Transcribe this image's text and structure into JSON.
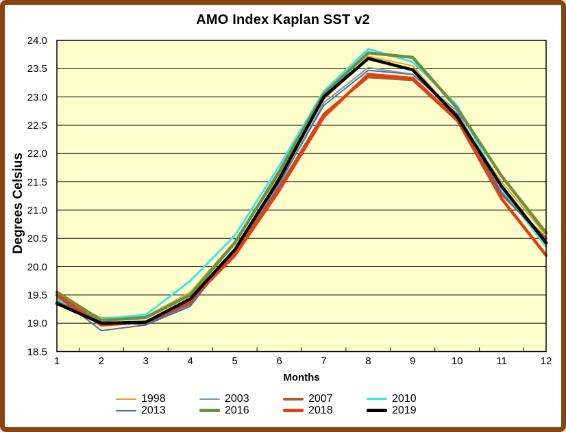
{
  "chart_data": {
    "type": "line",
    "title": "AMO Index Kaplan SST v2",
    "xlabel": "Months",
    "ylabel": "Degrees Celsius",
    "x": [
      1,
      2,
      3,
      4,
      5,
      6,
      7,
      8,
      9,
      10,
      11,
      12
    ],
    "ylim": [
      18.5,
      24.0
    ],
    "ytick_step": 0.5,
    "grid": true,
    "legend_position": "bottom",
    "legend_columns": 4,
    "plot_bg_color": "#FFFFCC",
    "frame_border_color": "#8B4212",
    "axis_color": "#000000",
    "series": [
      {
        "name": "1998",
        "color": "#E2A41C",
        "width": 2,
        "values": [
          19.45,
          19.1,
          19.12,
          19.55,
          20.45,
          21.62,
          22.95,
          23.72,
          23.55,
          22.65,
          21.5,
          20.55
        ]
      },
      {
        "name": "2003",
        "color": "#7495C7",
        "width": 2,
        "values": [
          19.45,
          19.03,
          18.97,
          19.32,
          20.28,
          21.45,
          22.9,
          23.52,
          23.4,
          22.75,
          21.32,
          20.46
        ]
      },
      {
        "name": "2007",
        "color": "#A85B2D",
        "width": 3.5,
        "values": [
          19.4,
          19.0,
          19.0,
          19.35,
          20.25,
          21.4,
          22.7,
          23.35,
          23.3,
          22.58,
          21.28,
          20.5
        ]
      },
      {
        "name": "2010",
        "color": "#3CE6E9",
        "width": 3,
        "values": [
          19.42,
          19.08,
          19.15,
          19.75,
          20.55,
          21.78,
          23.1,
          23.85,
          23.62,
          22.85,
          21.38,
          20.35
        ]
      },
      {
        "name": "2013",
        "color": "#4A6FAE",
        "width": 2,
        "values": [
          19.48,
          18.87,
          18.97,
          19.3,
          20.32,
          21.48,
          22.85,
          23.47,
          23.4,
          22.7,
          21.3,
          20.44
        ]
      },
      {
        "name": "2016",
        "color": "#6C9040",
        "width": 4.5,
        "values": [
          19.55,
          19.05,
          19.1,
          19.5,
          20.42,
          21.68,
          23.05,
          23.78,
          23.7,
          22.8,
          21.6,
          20.6
        ]
      },
      {
        "name": "2018",
        "color": "#E83D13",
        "width": 4.5,
        "values": [
          19.5,
          18.97,
          19.02,
          19.4,
          20.2,
          21.35,
          22.65,
          23.4,
          23.33,
          22.6,
          21.2,
          20.2
        ]
      },
      {
        "name": "2019",
        "color": "#000000",
        "width": 4.5,
        "values": [
          19.35,
          19.0,
          19.02,
          19.43,
          20.3,
          21.55,
          23.0,
          23.68,
          23.48,
          22.65,
          21.42,
          20.42
        ]
      }
    ]
  }
}
